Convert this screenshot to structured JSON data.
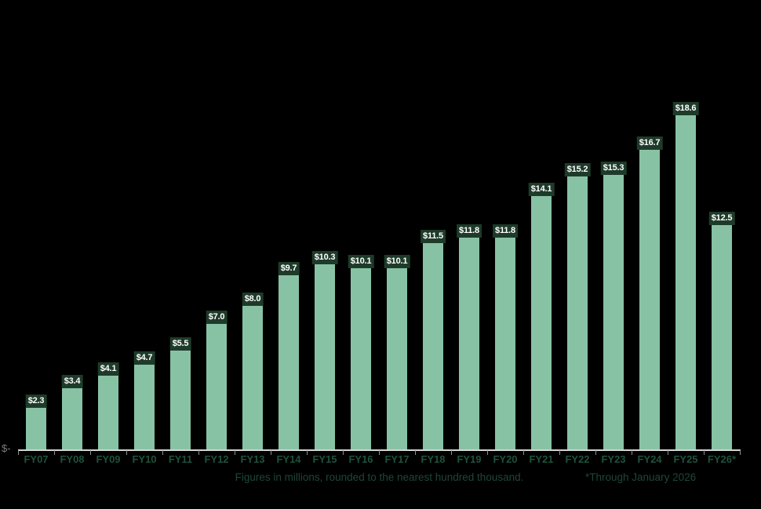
{
  "chart_data": {
    "type": "bar",
    "categories": [
      "FY07",
      "FY08",
      "FY09",
      "FY10",
      "FY11",
      "FY12",
      "FY13",
      "FY14",
      "FY15",
      "FY16",
      "FY17",
      "FY18",
      "FY19",
      "FY20",
      "FY21",
      "FY22",
      "FY23",
      "FY24",
      "FY25",
      "FY26*"
    ],
    "values": [
      2.3,
      3.4,
      4.1,
      4.7,
      5.5,
      7.0,
      8.0,
      9.7,
      10.3,
      10.1,
      10.1,
      11.5,
      11.8,
      11.8,
      14.1,
      15.2,
      15.3,
      16.7,
      18.6,
      12.5
    ],
    "bar_labels": [
      "$2.3",
      "$3.4",
      "$4.1",
      "$4.7",
      "$5.5",
      "$7.0",
      "$8.0",
      "$9.7",
      "$10.3",
      "$10.1",
      "$10.1",
      "$11.5",
      "$11.8",
      "$11.8",
      "$14.1",
      "$15.2",
      "$15.3",
      "$16.7",
      "$18.6",
      "$12.5"
    ],
    "title": "",
    "xlabel": "",
    "ylabel": "",
    "ylim": [
      0,
      18.6
    ],
    "grid": false,
    "legend": "none",
    "y_axis_zero_label": "$-",
    "footnote_center": "Figures in millions, rounded to the nearest hundred thousand.",
    "footnote_right": "*Through January 2026",
    "colors": {
      "background": "#000000",
      "bar_fill": "#88C2A4",
      "label_box_bg": "#1E3B2A",
      "label_box_text": "#FFFFFF",
      "category_label": "#1F523B",
      "footnote": "#1E4736",
      "axis_line": "#D4D4D4",
      "tick": "#8F8F8F",
      "zero_label": "#7D7D7D"
    }
  }
}
